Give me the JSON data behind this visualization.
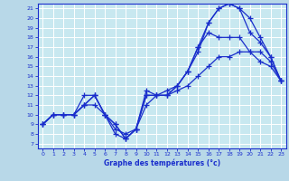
{
  "xlabel": "Graphe des températures (°c)",
  "xlim": [
    -0.5,
    23.5
  ],
  "ylim": [
    6.5,
    21.5
  ],
  "yticks": [
    7,
    8,
    9,
    10,
    11,
    12,
    13,
    14,
    15,
    16,
    17,
    18,
    19,
    20,
    21
  ],
  "xticks": [
    0,
    1,
    2,
    3,
    4,
    5,
    6,
    7,
    8,
    9,
    10,
    11,
    12,
    13,
    14,
    15,
    16,
    17,
    18,
    19,
    20,
    21,
    22,
    23
  ],
  "bg_color": "#b8d8e8",
  "plot_bg_color": "#c8e8f0",
  "line_color": "#1a2ecc",
  "grid_color": "#ffffff",
  "series": [
    {
      "x": [
        0,
        1,
        2,
        3,
        4,
        5,
        6,
        7,
        8,
        9,
        10,
        11,
        12,
        13,
        14,
        15,
        16,
        17,
        18,
        19,
        20,
        21,
        22,
        23
      ],
      "y": [
        9,
        10,
        10,
        10,
        11,
        12,
        10,
        9,
        7.5,
        8.5,
        11,
        12,
        12,
        12.5,
        13,
        14,
        15,
        16,
        16,
        16.5,
        16.5,
        15.5,
        15,
        13.5
      ]
    },
    {
      "x": [
        0,
        1,
        2,
        3,
        4,
        5,
        6,
        7,
        8,
        9,
        10,
        11,
        12,
        13,
        14,
        15,
        16,
        17,
        18,
        19,
        20,
        21,
        22,
        23
      ],
      "y": [
        9,
        10,
        10,
        10,
        12,
        12,
        10,
        8.5,
        8,
        8.5,
        12,
        12,
        12.5,
        13,
        14.5,
        16.5,
        19.5,
        21,
        21.5,
        21,
        20,
        18,
        16,
        13.5
      ]
    },
    {
      "x": [
        0,
        1,
        2,
        3,
        4,
        5,
        6,
        7,
        8,
        9,
        10,
        11,
        12,
        13,
        14,
        15,
        16,
        17,
        18,
        19,
        20,
        21,
        22,
        23
      ],
      "y": [
        9,
        10,
        10,
        10,
        11,
        11,
        10,
        8,
        7.5,
        8.5,
        12,
        12,
        12,
        13,
        14.5,
        17,
        19.5,
        21,
        21.5,
        21,
        18.5,
        17.5,
        16,
        13.5
      ]
    },
    {
      "x": [
        0,
        1,
        2,
        3,
        4,
        5,
        6,
        7,
        8,
        9,
        10,
        11,
        12,
        13,
        14,
        15,
        16,
        17,
        18,
        19,
        20,
        21,
        22,
        23
      ],
      "y": [
        9,
        10,
        10,
        10,
        11,
        12,
        10,
        9,
        7.5,
        8.5,
        12.5,
        12,
        12,
        13,
        14.5,
        17,
        18.5,
        18,
        18,
        18,
        16.5,
        16.5,
        15.5,
        13.5
      ]
    }
  ]
}
